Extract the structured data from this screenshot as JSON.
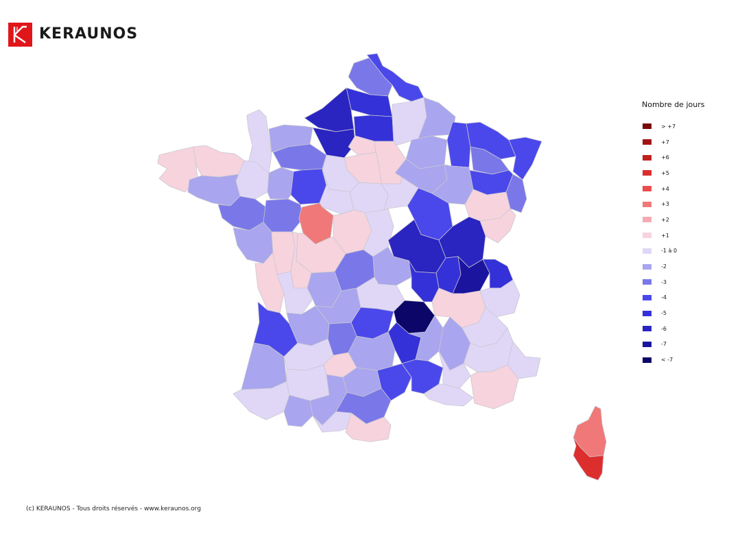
{
  "brand": {
    "name": "KERAUNOS",
    "logo_color": "#e0161b"
  },
  "legend": {
    "title": "Nombre de jours",
    "items": [
      {
        "label": "> +7",
        "color": "#7a0b0b"
      },
      {
        "label": "+7",
        "color": "#a01414"
      },
      {
        "label": "+6",
        "color": "#c21f1f"
      },
      {
        "label": "+5",
        "color": "#dd2e2e"
      },
      {
        "label": "+4",
        "color": "#ea4d4d"
      },
      {
        "label": "+3",
        "color": "#f07878"
      },
      {
        "label": "+2",
        "color": "#f5a9b2"
      },
      {
        "label": "+1",
        "color": "#f7d3de"
      },
      {
        "label": "-1 à 0",
        "color": "#e0d7f7"
      },
      {
        "label": "-2",
        "color": "#a9a5ee"
      },
      {
        "label": "-3",
        "color": "#7a78e8"
      },
      {
        "label": "-4",
        "color": "#4a48ea"
      },
      {
        "label": "-5",
        "color": "#3431d8"
      },
      {
        "label": "-6",
        "color": "#2a24c0"
      },
      {
        "label": "-7",
        "color": "#1a149e"
      },
      {
        "label": "< -7",
        "color": "#0b0668"
      }
    ]
  },
  "footer": {
    "copyright": "(c) KERAUNOS - Tous droits réservés - www.keraunos.org"
  }
}
